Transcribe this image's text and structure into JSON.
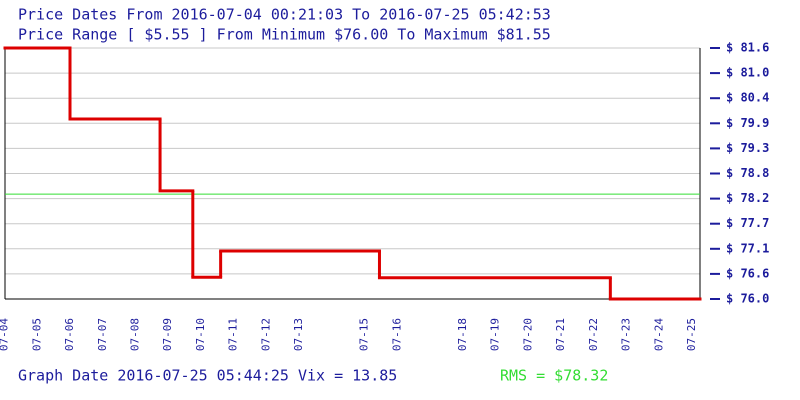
{
  "chart_data": {
    "type": "step",
    "title": "Price Dates From 2016-07-04 00:21:03 To 2016-07-25 05:42:53",
    "subtitle": "Price Range [ $5.55 ] From Minimum $76.00 To Maximum $81.55",
    "footer": "Graph Date 2016-07-25 05:44:25 Vix = 13.85",
    "rms_label": "RMS = $78.32",
    "rms": 78.32,
    "rms_color": "#33dd33",
    "color": "#dd0000",
    "grid": true,
    "x": [
      4.015,
      6.0,
      8.75,
      9.75,
      10.6,
      15.45,
      22.5
    ],
    "values": [
      81.55,
      79.98,
      78.39,
      76.48,
      77.06,
      76.47,
      76.0
    ],
    "xlim": [
      4.015,
      25.238
    ],
    "xticks": [
      {
        "value": 4,
        "label": "07-04"
      },
      {
        "value": 5,
        "label": "07-05"
      },
      {
        "value": 6,
        "label": "07-06"
      },
      {
        "value": 7,
        "label": "07-07"
      },
      {
        "value": 8,
        "label": "07-08"
      },
      {
        "value": 9,
        "label": "07-09"
      },
      {
        "value": 10,
        "label": "07-10"
      },
      {
        "value": 11,
        "label": "07-11"
      },
      {
        "value": 12,
        "label": "07-12"
      },
      {
        "value": 13,
        "label": "07-13"
      },
      {
        "value": 15,
        "label": "07-15"
      },
      {
        "value": 16,
        "label": "07-16"
      },
      {
        "value": 18,
        "label": "07-18"
      },
      {
        "value": 19,
        "label": "07-19"
      },
      {
        "value": 20,
        "label": "07-20"
      },
      {
        "value": 21,
        "label": "07-21"
      },
      {
        "value": 22,
        "label": "07-22"
      },
      {
        "value": 23,
        "label": "07-23"
      },
      {
        "value": 24,
        "label": "07-24"
      },
      {
        "value": 25,
        "label": "07-25"
      }
    ],
    "ylim": [
      76.0,
      81.55
    ],
    "yticks": [
      {
        "value": 81.55,
        "label": "$ 81.6"
      },
      {
        "value": 80.995,
        "label": "$ 81.0"
      },
      {
        "value": 80.44,
        "label": "$ 80.4"
      },
      {
        "value": 79.885,
        "label": "$ 79.9"
      },
      {
        "value": 79.33,
        "label": "$ 79.3"
      },
      {
        "value": 78.775,
        "label": "$ 78.8"
      },
      {
        "value": 78.22,
        "label": "$ 78.2"
      },
      {
        "value": 77.665,
        "label": "$ 77.7"
      },
      {
        "value": 77.11,
        "label": "$ 77.1"
      },
      {
        "value": 76.555,
        "label": "$ 76.6"
      },
      {
        "value": 76.0,
        "label": "$ 76.0"
      }
    ]
  }
}
